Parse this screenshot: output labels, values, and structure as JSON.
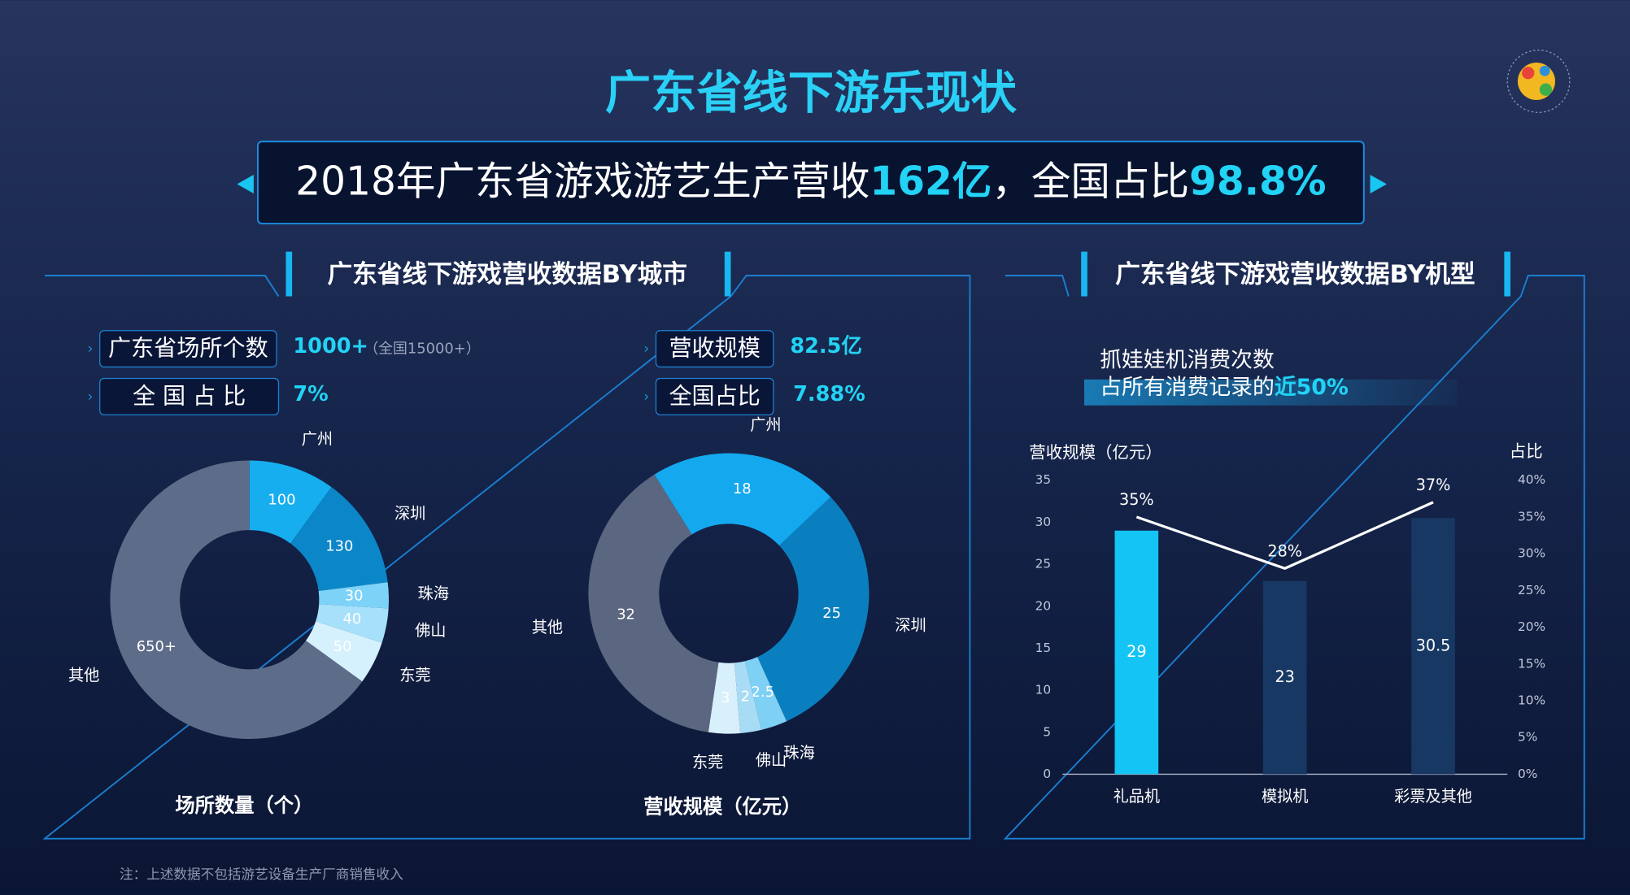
{
  "title": "广东省线下游乐现状",
  "banner": {
    "parts": [
      "2018年广东省游戏游艺生产营收",
      "162亿",
      "，全国占比",
      "98.8%"
    ]
  },
  "city_panel": {
    "title": "广东省线下游戏营收数据BY城市",
    "stats": [
      {
        "label": "广东省场所个数",
        "value": "1000+",
        "note": "（全国15000+）"
      },
      {
        "label": "全 国 占 比",
        "value": "7%"
      },
      {
        "label": "营收规模",
        "value": "82.5亿"
      },
      {
        "label": "全国占比",
        "value": "7.88%"
      }
    ]
  },
  "type_panel": {
    "title": "广东省线下游戏营收数据BY机型",
    "callout": [
      "抓娃娃机消费次数",
      "占所有消费记录的",
      "近50%"
    ]
  },
  "footnote": "注：上述数据不包括游艺设备生产厂商销售收入",
  "chart_data": [
    {
      "type": "donut",
      "title": "场所数量（个）",
      "categories": [
        "广州",
        "深圳",
        "珠海",
        "佛山",
        "东莞",
        "其他"
      ],
      "values": [
        100,
        130,
        30,
        40,
        50,
        650
      ],
      "value_labels": [
        "100",
        "130",
        "30",
        "40",
        "50",
        "650+"
      ],
      "colors": [
        "#17aef0",
        "#0b86c8",
        "#7dd3f7",
        "#a6e0fa",
        "#d4f1fd",
        "#5d6c88"
      ]
    },
    {
      "type": "donut",
      "title": "营收规模（亿元）",
      "categories": [
        "广州",
        "深圳",
        "珠海",
        "佛山",
        "东莞",
        "其他"
      ],
      "values": [
        18,
        25,
        2.5,
        2,
        3,
        32
      ],
      "colors": [
        "#14a8ef",
        "#0a7fc0",
        "#7fd0f5",
        "#a8dcf5",
        "#d8f0fb",
        "#5b6680"
      ]
    },
    {
      "type": "bar",
      "categories": [
        "礼品机",
        "模拟机",
        "彩票及其他"
      ],
      "y_label": "营收规模（亿元）",
      "y2_label": "占比",
      "grid": false,
      "ylim": [
        0,
        35
      ],
      "yticks": [
        0,
        5,
        10,
        15,
        20,
        25,
        30,
        35
      ],
      "y2lim": [
        0,
        40
      ],
      "y2ticks": [
        {
          "value": 0,
          "label": "0%"
        },
        {
          "value": 5,
          "label": "5%"
        },
        {
          "value": 10,
          "label": "10%"
        },
        {
          "value": 15,
          "label": "15%"
        },
        {
          "value": 20,
          "label": "20%"
        },
        {
          "value": 25,
          "label": "25%"
        },
        {
          "value": 30,
          "label": "30%"
        },
        {
          "value": 35,
          "label": "35%"
        },
        {
          "value": 40,
          "label": "40%"
        }
      ],
      "series": [
        {
          "values": [
            29,
            23,
            30.5
          ],
          "colors": [
            "#14c4f4",
            "#173863",
            "#173863"
          ]
        },
        {
          "type": "line",
          "axis": "y2",
          "color": "#ffffff",
          "values": [
            35,
            28,
            37
          ],
          "value_labels": [
            "35%",
            "28%",
            "37%"
          ]
        }
      ]
    }
  ]
}
